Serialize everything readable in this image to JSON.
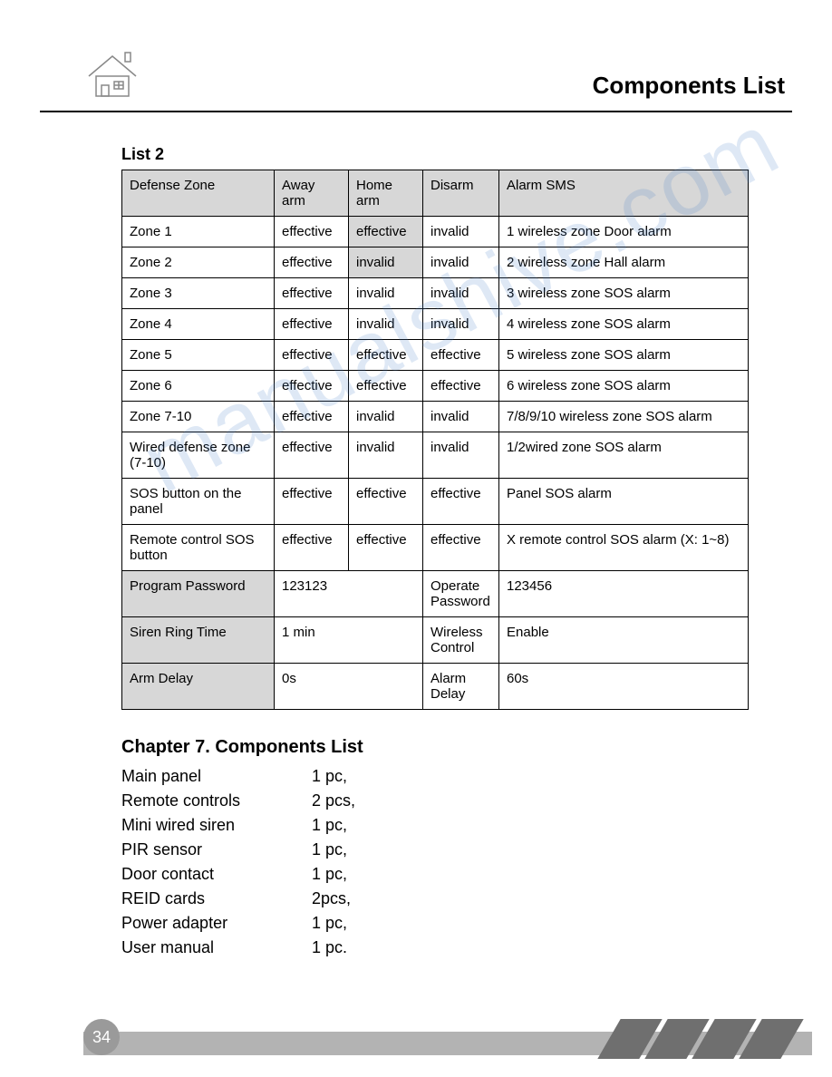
{
  "header": {
    "title": "Components List"
  },
  "watermark": "manualshive.com",
  "list2": {
    "label": "List 2",
    "headers": {
      "zone": "Defense Zone",
      "away": "Away arm",
      "home": "Home arm",
      "disarm": "Disarm",
      "sms": "Alarm SMS"
    },
    "rows": [
      {
        "zone": "Zone 1",
        "away": "effective",
        "home": "effective",
        "home_shaded": true,
        "disarm": "invalid",
        "sms": "1 wireless zone Door alarm"
      },
      {
        "zone": "Zone 2",
        "away": "effective",
        "home": "invalid",
        "home_shaded": true,
        "disarm": "invalid",
        "sms": "2 wireless zone Hall alarm"
      },
      {
        "zone": "Zone 3",
        "away": "effective",
        "home": "invalid",
        "disarm": "invalid",
        "sms": "3 wireless zone SOS alarm"
      },
      {
        "zone": "Zone 4",
        "away": "effective",
        "home": "invalid",
        "disarm": "invalid",
        "sms": "4 wireless zone SOS alarm"
      },
      {
        "zone": "Zone 5",
        "away": "effective",
        "home": "effective",
        "disarm": "effective",
        "sms": "5 wireless zone SOS alarm"
      },
      {
        "zone": "Zone 6",
        "away": "effective",
        "home": "effective",
        "disarm": "effective",
        "sms": "6 wireless zone SOS alarm"
      },
      {
        "zone": "Zone 7-10",
        "away": "effective",
        "home": "invalid",
        "disarm": "invalid",
        "sms": "7/8/9/10 wireless zone SOS alarm"
      },
      {
        "zone": "Wired defense\n zone (7-10)",
        "away": "effective",
        "home": "invalid",
        "disarm": "invalid",
        "sms": "1/2wired zone SOS alarm"
      },
      {
        "zone": "SOS button on the panel",
        "away": "effective",
        "home": "effective",
        "disarm": "effective",
        "sms": "Panel SOS alarm"
      },
      {
        "zone": "Remote control SOS button",
        "away": "effective",
        "home": "effective",
        "disarm": "effective",
        "sms": "X remote control SOS alarm  (X: 1~8)"
      }
    ],
    "params": [
      {
        "label": "Program Password",
        "val1": "123123",
        "label2": "Operate Password",
        "val2": "123456"
      },
      {
        "label": "Siren Ring Time",
        "val1": "1  min",
        "label2": "Wireless Control",
        "val2": "Enable"
      },
      {
        "label": "Arm Delay",
        "val1": "0s",
        "label2": "Alarm Delay",
        "val2": "60s"
      }
    ]
  },
  "chapter": {
    "title": "Chapter 7. Components List",
    "items": [
      {
        "name": "Main panel",
        "qty": "1 pc,"
      },
      {
        "name": "Remote controls",
        "qty": " 2 pcs,"
      },
      {
        "name": "Mini wired siren",
        "qty": "1 pc,"
      },
      {
        "name": "PIR sensor",
        "qty": "1 pc,"
      },
      {
        "name": "Door contact",
        "qty": "1 pc,"
      },
      {
        "name": "REID cards",
        "qty": "2pcs,"
      },
      {
        "name": "Power adapter",
        "qty": "1 pc,"
      },
      {
        "name": "User manual",
        "qty": "1 pc."
      }
    ]
  },
  "page_number": "34",
  "colors": {
    "header_rule": "#000000",
    "table_border": "#000000",
    "shaded_bg": "#d7d7d7",
    "footer_bar": "#b3b3b3",
    "page_badge": "#9a9a9a",
    "slash": "#6f6f6f",
    "watermark": "rgba(70,130,200,0.18)"
  }
}
